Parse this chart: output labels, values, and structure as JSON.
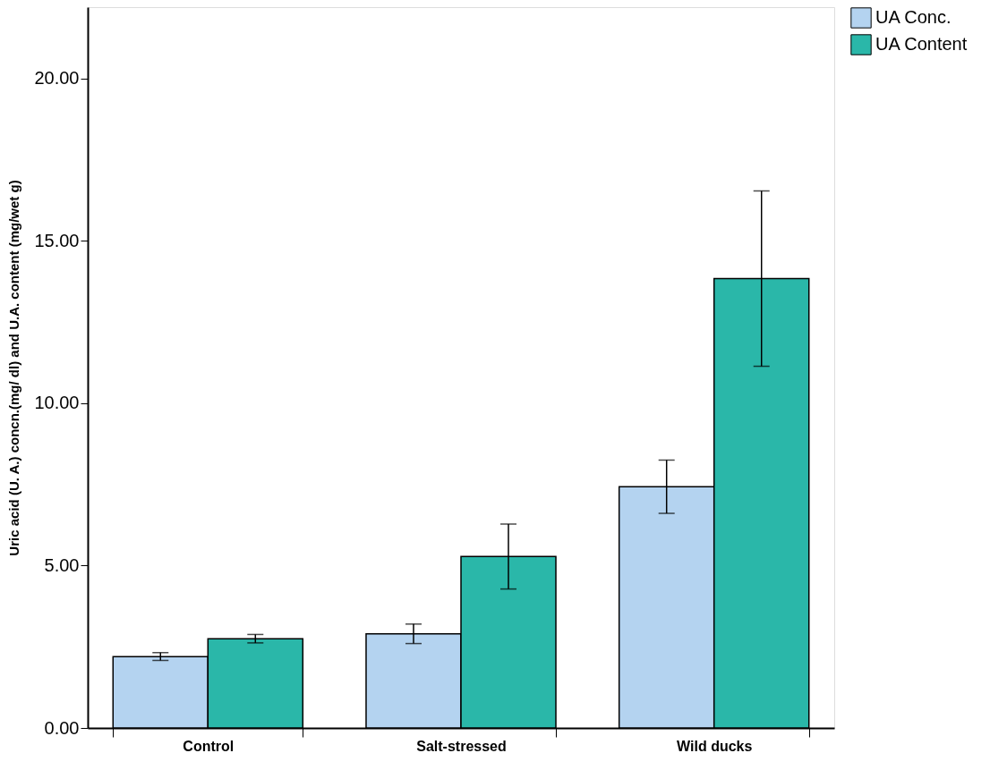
{
  "chart_data": {
    "type": "bar",
    "ylabel": "Uric acid (U. A.) concn.(mg/ dl) and U.A. content (mg/wet g)",
    "categories": [
      "Control",
      "Salt-stressed",
      "Wild ducks"
    ],
    "series": [
      {
        "name": "UA Conc.",
        "color": "#b4d3f0",
        "values": [
          2.2,
          2.9,
          7.43
        ],
        "errors": [
          0.12,
          0.3,
          0.82
        ]
      },
      {
        "name": "UA Content",
        "color": "#2ab7a9",
        "values": [
          2.75,
          5.28,
          13.84
        ],
        "errors": [
          0.13,
          1.0,
          2.7
        ]
      }
    ],
    "ylim": [
      0,
      22.2
    ],
    "yticks": [
      {
        "value": 0,
        "label": "0.00"
      },
      {
        "value": 5,
        "label": "5.00"
      },
      {
        "value": 10,
        "label": "10.00"
      },
      {
        "value": 15,
        "label": "15.00"
      },
      {
        "value": 20,
        "label": "20.00"
      }
    ],
    "grid": false,
    "legend": "top right"
  }
}
